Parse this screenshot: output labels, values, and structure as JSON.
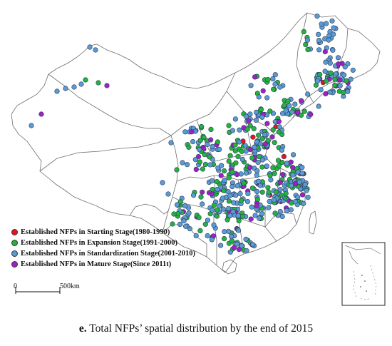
{
  "caption": {
    "label": "e.",
    "text": "Total NFPs’ spatial distribution by the end of 2015"
  },
  "legend": [
    {
      "label": "Established NFPs in Starting Stage(1980-1990)",
      "color": "#e8141c"
    },
    {
      "label": "Established NFPs in Expansion Stage(1991-2000)",
      "color": "#22b43c"
    },
    {
      "label": "Established NFPs in Standardization Stage(2001-2010)",
      "color": "#5b9bd5"
    },
    {
      "label": "Established NFPs in Mature Stage(Since 2011t)",
      "color": "#a020c8"
    }
  ],
  "scale_bar": {
    "start_label": "0",
    "end_label": "500km"
  },
  "colors": {
    "boundary": "#6d6d6d",
    "marker_outline": "#2a3a55"
  }
}
